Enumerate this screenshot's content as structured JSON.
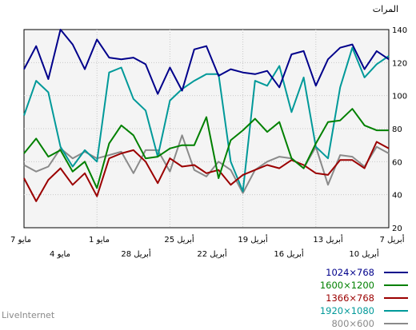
{
  "brand": "LiveInternet",
  "chart_data": {
    "type": "line",
    "ylabel": "المرات",
    "ylim": [
      20,
      140
    ],
    "yticks": [
      20,
      40,
      60,
      80,
      100,
      120,
      140
    ],
    "grid": true,
    "legend_position": "bottom-right",
    "x_ticks_top": [
      "7 مايو",
      "1 مايو",
      "25 أبريل",
      "19 أبريل",
      "13 أبريل",
      "7 أبريل"
    ],
    "x_ticks_bottom": [
      "4 مايو",
      "28 أبريل",
      "22 أبريل",
      "16 أبريل",
      "10 أبريل"
    ],
    "series": [
      {
        "name": "1024×768",
        "color": "#00008b",
        "values": [
          116,
          130,
          110,
          140,
          131,
          116,
          134,
          123,
          122,
          123,
          119,
          101,
          117,
          103,
          128,
          130,
          112,
          116,
          114,
          113,
          115,
          105,
          125,
          127,
          106,
          122,
          129,
          131,
          116,
          127,
          122
        ]
      },
      {
        "name": "1600×1200",
        "color": "#008000",
        "values": [
          65,
          74,
          63,
          67,
          54,
          60,
          44,
          71,
          82,
          76,
          62,
          63,
          68,
          70,
          70,
          87,
          50,
          73,
          79,
          86,
          78,
          84,
          62,
          56,
          71,
          84,
          85,
          92,
          82,
          79,
          79
        ]
      },
      {
        "name": "1366×768",
        "color": "#9b0000",
        "values": [
          50,
          36,
          49,
          56,
          46,
          53,
          39,
          62,
          65,
          67,
          60,
          47,
          62,
          57,
          58,
          53,
          55,
          46,
          52,
          55,
          58,
          56,
          61,
          58,
          53,
          52,
          61,
          61,
          56,
          72,
          68
        ]
      },
      {
        "name": "1920×1080",
        "color": "#009999",
        "values": [
          88,
          109,
          102,
          69,
          57,
          67,
          60,
          114,
          117,
          98,
          91,
          63,
          97,
          104,
          109,
          113,
          113,
          60,
          42,
          109,
          106,
          118,
          90,
          111,
          69,
          62,
          105,
          129,
          111,
          119,
          124
        ]
      },
      {
        "name": "800×600",
        "color": "#8a8a8a",
        "values": [
          58,
          54,
          57,
          68,
          62,
          66,
          62,
          64,
          66,
          53,
          67,
          67,
          54,
          76,
          55,
          51,
          60,
          55,
          41,
          55,
          60,
          63,
          62,
          56,
          69,
          46,
          64,
          63,
          57,
          69,
          65
        ]
      }
    ]
  }
}
